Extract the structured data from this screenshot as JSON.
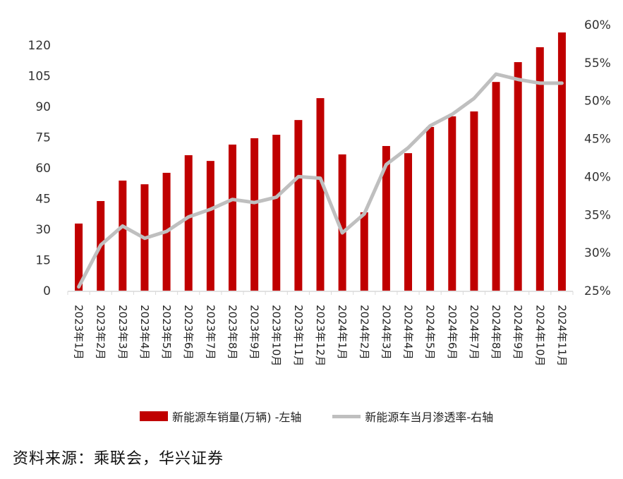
{
  "chart_data": {
    "type": "bar+line",
    "title": "",
    "categories": [
      "2023年1月",
      "2023年2月",
      "2023年3月",
      "2023年4月",
      "2023年5月",
      "2023年6月",
      "2023年7月",
      "2023年8月",
      "2023年9月",
      "2023年10月",
      "2023年11月",
      "2023年12月",
      "2024年1月",
      "2024年2月",
      "2024年3月",
      "2024年4月",
      "2024年5月",
      "2024年6月",
      "2024年7月",
      "2024年8月",
      "2024年9月",
      "2024年10月",
      "2024年11月"
    ],
    "series": [
      {
        "name": "新能源车销量(万辆) -左轴",
        "type": "bar",
        "axis": "left",
        "color": "#C00000",
        "values": [
          32.8,
          43.8,
          53.8,
          52.0,
          57.6,
          66.2,
          63.4,
          71.4,
          74.5,
          76.2,
          83.4,
          94.1,
          66.6,
          38.3,
          70.7,
          67.2,
          80.0,
          85.2,
          87.6,
          102.0,
          111.7,
          119.0,
          126.2
        ]
      },
      {
        "name": "新能源车当月渗透率-右轴",
        "type": "line",
        "axis": "right",
        "color": "#BFBFBF",
        "unit": "%",
        "values": [
          25.5,
          31.0,
          33.5,
          31.9,
          32.8,
          34.7,
          35.7,
          37.0,
          36.6,
          37.3,
          40.0,
          39.8,
          32.6,
          35.1,
          41.6,
          43.8,
          46.7,
          48.2,
          50.3,
          53.5,
          52.8,
          52.3,
          52.3
        ]
      }
    ],
    "left_axis": {
      "ylim": [
        0,
        120
      ],
      "ticks": [
        "0",
        "15",
        "30",
        "45",
        "60",
        "75",
        "90",
        "105",
        "120"
      ]
    },
    "right_axis": {
      "ylim": [
        25,
        60
      ],
      "ticks": [
        "25%",
        "30%",
        "35%",
        "40%",
        "45%",
        "50%",
        "55%",
        "60%"
      ]
    },
    "xlabel": "",
    "ylabel": "",
    "grid": false,
    "legend_position": "bottom"
  },
  "legend": {
    "bar_label": "新能源车销量(万辆) -左轴",
    "line_label": "新能源车当月渗透率-右轴"
  },
  "source": "资料来源：乘联会，华兴证券"
}
